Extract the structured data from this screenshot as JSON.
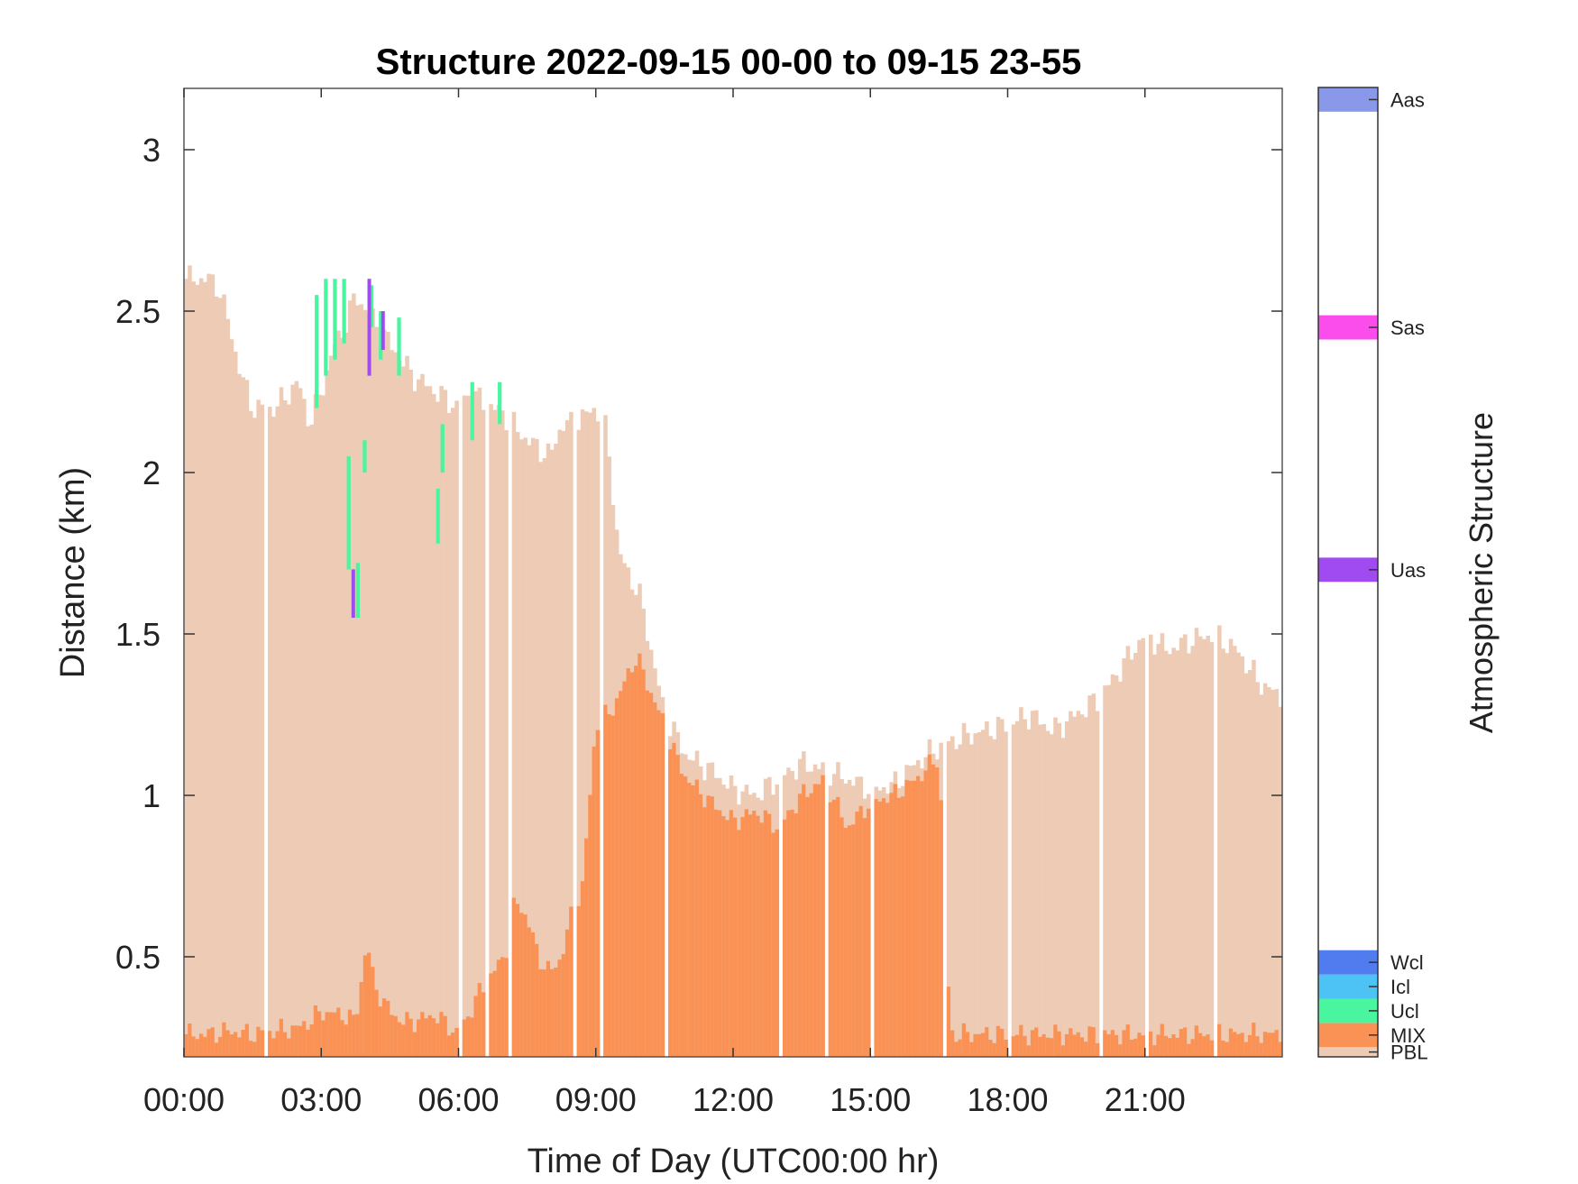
{
  "chart_data": {
    "type": "bar",
    "title": "Structure 2022-09-15 00-00 to 09-15 23-55",
    "xlabel": "Time of Day (UTC00:00 hr)",
    "ylabel": "Distance (km)",
    "xlim": [
      0,
      24
    ],
    "ylim": [
      0.19,
      3.19
    ],
    "x_ticks": [
      0,
      3,
      6,
      9,
      12,
      15,
      18,
      21
    ],
    "x_tick_labels": [
      "00:00",
      "03:00",
      "06:00",
      "09:00",
      "12:00",
      "15:00",
      "18:00",
      "21:00"
    ],
    "y_ticks": [
      0.5,
      1,
      1.5,
      2,
      2.5,
      3
    ],
    "y_tick_labels": [
      "0.5",
      "1",
      "1.5",
      "2",
      "2.5",
      "3"
    ],
    "grid": false,
    "base": 0.19,
    "pbl_profile": {
      "name": "PBL",
      "x": [
        0,
        0.5,
        0.75,
        1,
        1.25,
        1.5,
        2,
        2.5,
        2.75,
        3,
        3.25,
        3.5,
        3.75,
        4,
        4.25,
        4.5,
        5,
        5.5,
        6,
        6.25,
        6.5,
        7,
        7.5,
        8,
        8.25,
        8.5,
        9,
        9.25,
        9.5,
        9.75,
        10,
        10.25,
        10.5,
        11,
        11.5,
        12,
        12.5,
        13,
        13.5,
        14,
        14.5,
        15,
        15.5,
        16,
        16.5,
        17,
        17.5,
        18,
        18.5,
        19,
        19.5,
        20,
        20.5,
        21,
        21.5,
        22,
        22.5,
        23,
        23.5,
        24
      ],
      "y": [
        2.6,
        2.6,
        2.58,
        2.45,
        2.3,
        2.2,
        2.2,
        2.28,
        2.15,
        2.25,
        2.38,
        2.45,
        2.55,
        2.5,
        2.45,
        2.4,
        2.3,
        2.25,
        2.2,
        2.25,
        2.22,
        2.18,
        2.1,
        2.05,
        2.15,
        2.15,
        2.2,
        2.12,
        1.75,
        1.68,
        1.6,
        1.42,
        1.25,
        1.12,
        1.08,
        1.02,
        1.0,
        1.05,
        1.1,
        1.08,
        1.05,
        1.02,
        1.03,
        1.1,
        1.15,
        1.18,
        1.2,
        1.22,
        1.25,
        1.2,
        1.25,
        1.3,
        1.4,
        1.5,
        1.45,
        1.48,
        1.5,
        1.45,
        1.35,
        1.3
      ]
    },
    "mix_profile": {
      "name": "MIX",
      "x": [
        0,
        0.5,
        1,
        1.5,
        2,
        2.5,
        2.75,
        3,
        3.5,
        3.75,
        4,
        4.15,
        4.4,
        4.75,
        5,
        5.5,
        6,
        6.5,
        7,
        7.25,
        7.5,
        7.75,
        8,
        8.25,
        8.5,
        8.7,
        9,
        9.25,
        9.5,
        9.7,
        9.85,
        10,
        10.25,
        10.5,
        10.75,
        11,
        11.5,
        12,
        12.5,
        13,
        13.5,
        14,
        14.5,
        15,
        15.5,
        16,
        16.5,
        16.75,
        17,
        24
      ],
      "y": [
        0.26,
        0.26,
        0.27,
        0.26,
        0.27,
        0.28,
        0.3,
        0.33,
        0.32,
        0.3,
        0.55,
        0.42,
        0.35,
        0.3,
        0.3,
        0.32,
        0.26,
        0.4,
        0.5,
        0.68,
        0.62,
        0.5,
        0.45,
        0.5,
        0.65,
        0.7,
        1.22,
        1.25,
        1.3,
        1.38,
        1.42,
        1.4,
        1.3,
        1.22,
        1.12,
        1.05,
        0.98,
        0.92,
        0.95,
        0.9,
        1.0,
        1.05,
        0.9,
        0.98,
        1.0,
        1.05,
        1.12,
        0.26,
        0.26,
        0.26
      ]
    },
    "gaps_hours": [
      1.75,
      6.0,
      6.58,
      7.08,
      8.5,
      9.08,
      10.5,
      13.0,
      14.0,
      15.0,
      16.58,
      18.0,
      20.0,
      21.0,
      22.5
    ],
    "ucl_segments": [
      {
        "x": 2.9,
        "y0": 2.2,
        "y1": 2.55
      },
      {
        "x": 3.1,
        "y0": 2.3,
        "y1": 2.6
      },
      {
        "x": 3.3,
        "y0": 2.35,
        "y1": 2.6
      },
      {
        "x": 3.5,
        "y0": 2.4,
        "y1": 2.6
      },
      {
        "x": 3.6,
        "y0": 1.7,
        "y1": 2.05
      },
      {
        "x": 3.8,
        "y0": 1.55,
        "y1": 1.72
      },
      {
        "x": 3.95,
        "y0": 2.0,
        "y1": 2.1
      },
      {
        "x": 4.1,
        "y0": 2.45,
        "y1": 2.58
      },
      {
        "x": 4.3,
        "y0": 2.35,
        "y1": 2.5
      },
      {
        "x": 4.7,
        "y0": 2.3,
        "y1": 2.48
      },
      {
        "x": 5.55,
        "y0": 1.78,
        "y1": 1.95
      },
      {
        "x": 5.65,
        "y0": 2.0,
        "y1": 2.15
      },
      {
        "x": 6.3,
        "y0": 2.1,
        "y1": 2.28
      },
      {
        "x": 6.9,
        "y0": 2.15,
        "y1": 2.28
      }
    ],
    "uas_segments": [
      {
        "x": 3.7,
        "y0": 1.55,
        "y1": 1.7
      },
      {
        "x": 4.05,
        "y0": 2.3,
        "y1": 2.6
      },
      {
        "x": 4.35,
        "y0": 2.38,
        "y1": 2.5
      }
    ],
    "colorbar": {
      "title": "Atmospheric Structure",
      "categories": [
        {
          "label": "PBL",
          "color": "#EDCBB5"
        },
        {
          "label": "MIX",
          "color": "#FA9255"
        },
        {
          "label": "Ucl",
          "color": "#4AF5A0"
        },
        {
          "label": "Icl",
          "color": "#4CC2F5"
        },
        {
          "label": "Wcl",
          "color": "#517CF0"
        },
        {
          "label": "Uas",
          "color": "#A04AF2"
        },
        {
          "label": "Sas",
          "color": "#FA4DEB"
        },
        {
          "label": "Aas",
          "color": "#8A98E9"
        }
      ],
      "bands": [
        {
          "label": "PBL",
          "from": 0.0,
          "to": 0.01
        },
        {
          "label": "MIX",
          "from": 0.01,
          "to": 0.035
        },
        {
          "label": "Ucl",
          "from": 0.035,
          "to": 0.06
        },
        {
          "label": "Icl",
          "from": 0.06,
          "to": 0.085
        },
        {
          "label": "Wcl",
          "from": 0.085,
          "to": 0.11
        },
        {
          "label": "Uas",
          "from": 0.49,
          "to": 0.515
        },
        {
          "label": "Sas",
          "from": 0.74,
          "to": 0.765
        },
        {
          "label": "Aas",
          "from": 0.975,
          "to": 1.0
        }
      ]
    }
  }
}
